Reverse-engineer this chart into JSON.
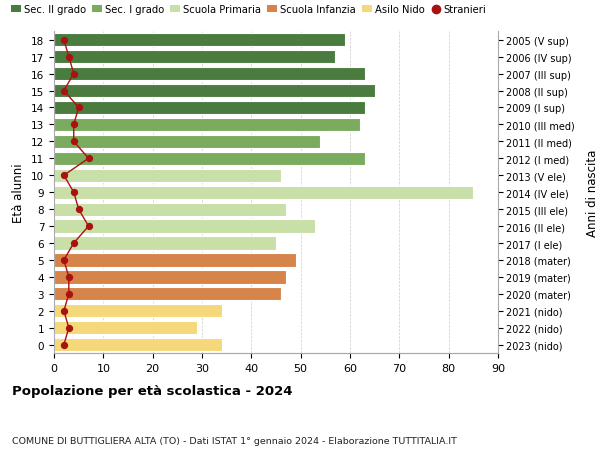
{
  "ages": [
    18,
    17,
    16,
    15,
    14,
    13,
    12,
    11,
    10,
    9,
    8,
    7,
    6,
    5,
    4,
    3,
    2,
    1,
    0
  ],
  "right_labels": [
    "2005 (V sup)",
    "2006 (IV sup)",
    "2007 (III sup)",
    "2008 (II sup)",
    "2009 (I sup)",
    "2010 (III med)",
    "2011 (II med)",
    "2012 (I med)",
    "2013 (V ele)",
    "2014 (IV ele)",
    "2015 (III ele)",
    "2016 (II ele)",
    "2017 (I ele)",
    "2018 (mater)",
    "2019 (mater)",
    "2020 (mater)",
    "2021 (nido)",
    "2022 (nido)",
    "2023 (nido)"
  ],
  "bar_values": [
    59,
    57,
    63,
    65,
    63,
    62,
    54,
    63,
    46,
    85,
    47,
    53,
    45,
    49,
    47,
    46,
    34,
    29,
    34
  ],
  "bar_colors": [
    "#4a7c3f",
    "#4a7c3f",
    "#4a7c3f",
    "#4a7c3f",
    "#4a7c3f",
    "#7aab5e",
    "#7aab5e",
    "#7aab5e",
    "#c8dfa8",
    "#c8dfa8",
    "#c8dfa8",
    "#c8dfa8",
    "#c8dfa8",
    "#d6844a",
    "#d6844a",
    "#d6844a",
    "#f5d87a",
    "#f5d87a",
    "#f5d87a"
  ],
  "stranieri_values": [
    2,
    3,
    4,
    2,
    5,
    4,
    4,
    7,
    2,
    4,
    5,
    7,
    4,
    2,
    3,
    3,
    2,
    3,
    2
  ],
  "legend_labels": [
    "Sec. II grado",
    "Sec. I grado",
    "Scuola Primaria",
    "Scuola Infanzia",
    "Asilo Nido",
    "Stranieri"
  ],
  "legend_colors": [
    "#4a7c3f",
    "#7aab5e",
    "#c8dfa8",
    "#d6844a",
    "#f5d87a",
    "#aa1111"
  ],
  "title": "Popolazione per età scolastica - 2024",
  "subtitle": "COMUNE DI BUTTIGLIERA ALTA (TO) - Dati ISTAT 1° gennaio 2024 - Elaborazione TUTTITALIA.IT",
  "ylabel": "Età alunni",
  "ylabel_right": "Anni di nascita",
  "xlim": [
    0,
    90
  ],
  "xticks": [
    0,
    10,
    20,
    30,
    40,
    50,
    60,
    70,
    80,
    90
  ],
  "background_color": "#ffffff",
  "grid_color": "#cccccc"
}
